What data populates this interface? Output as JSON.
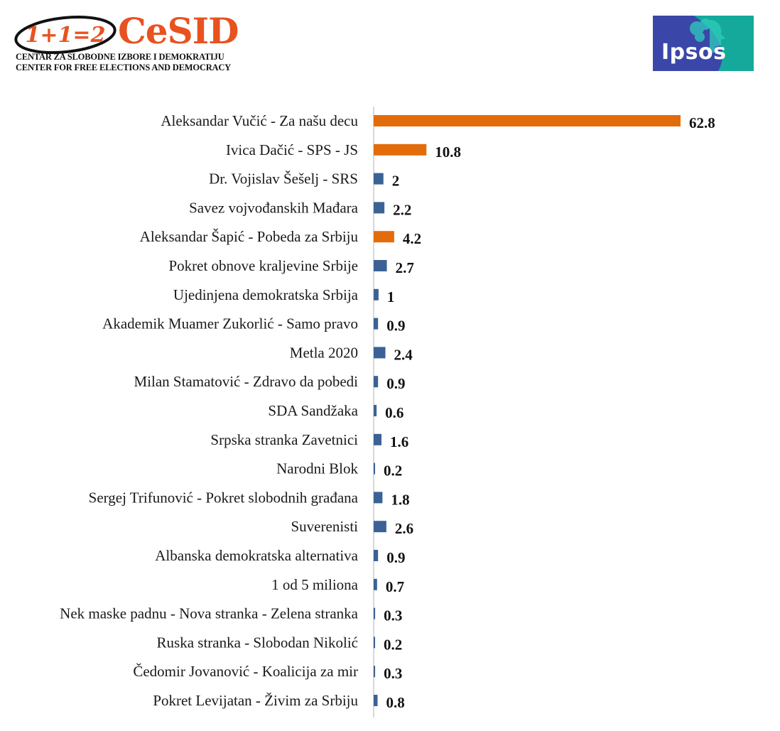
{
  "header": {
    "cesid": {
      "mark_text": "1+1=2",
      "name": "CeSID",
      "tagline_sr": "CENTAR ZA SLOBODNE IZBORE I DEMOKRATIJU",
      "tagline_en": "CENTER FOR FREE ELECTIONS AND DEMOCRACY"
    },
    "ipsos": {
      "name": "Ipsos",
      "colors": {
        "blue": "#3a47a8",
        "teal": "#14a99b"
      }
    }
  },
  "chart_data": {
    "type": "bar",
    "orientation": "horizontal",
    "categories": [
      "Aleksandar Vučić - Za našu decu",
      "Ivica Dačić - SPS - JS",
      "Dr. Vojislav Šešelj - SRS",
      "Savez vojvođanskih Mađara",
      "Aleksandar Šapić - Pobeda za Srbiju",
      "Pokret obnove kraljevine Srbije",
      "Ujedinjena demokratska Srbija",
      "Akademik Muamer Zukorlić - Samo pravo",
      "Metla 2020",
      "Milan Stamatović - Zdravo da pobedi",
      "SDA Sandžaka",
      "Srpska stranka Zavetnici",
      "Narodni Blok",
      "Sergej Trifunović - Pokret slobodnih građana",
      "Suverenisti",
      "Albanska demokratska alternativa",
      "1 od 5 miliona",
      "Nek maske padnu - Nova stranka - Zelena stranka",
      "Ruska stranka - Slobodan Nikolić",
      "Čedomir Jovanović - Koalicija za mir",
      "Pokret Levijatan - Živim za Srbiju"
    ],
    "values": [
      62.8,
      10.8,
      2,
      2.2,
      4.2,
      2.7,
      1,
      0.9,
      2.4,
      0.9,
      0.6,
      1.6,
      0.2,
      1.8,
      2.6,
      0.9,
      0.7,
      0.3,
      0.2,
      0.3,
      0.8
    ],
    "value_labels": [
      "62.8",
      "10.8",
      "2",
      "2.2",
      "4.2",
      "2.7",
      "1",
      "0.9",
      "2.4",
      "0.9",
      "0.6",
      "1.6",
      "0.2",
      "1.8",
      "2.6",
      "0.9",
      "0.7",
      "0.3",
      "0.2",
      "0.3",
      "0.8"
    ],
    "highlighted": [
      true,
      true,
      false,
      false,
      true,
      false,
      false,
      false,
      false,
      false,
      false,
      false,
      false,
      false,
      false,
      false,
      false,
      false,
      false,
      false,
      false
    ],
    "colors": {
      "highlight": "#e36c0a",
      "default": "#3b6294"
    },
    "title": "",
    "xlabel": "",
    "ylabel": "",
    "xlim": [
      0,
      65
    ],
    "grid": false,
    "legend": "none"
  }
}
